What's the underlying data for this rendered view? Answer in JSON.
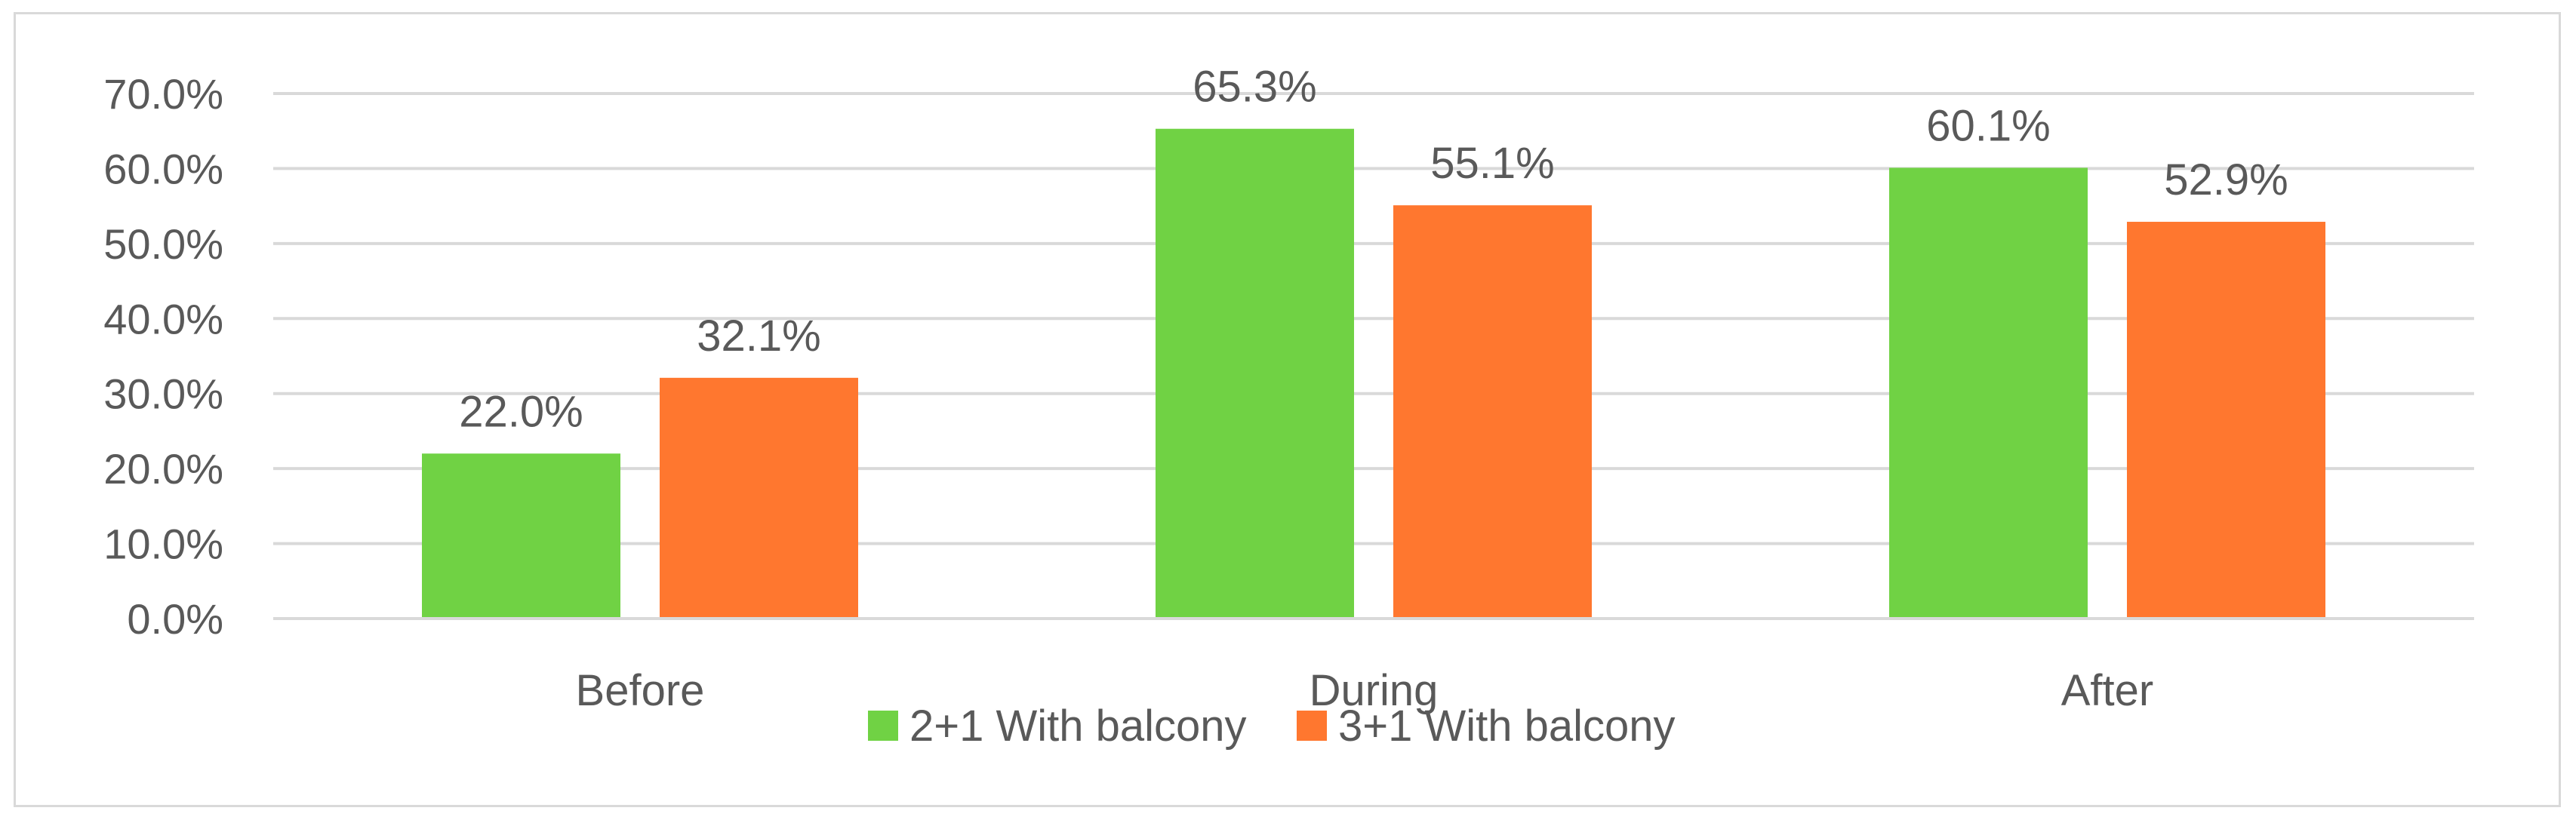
{
  "chart_data": {
    "type": "bar",
    "title": "",
    "xlabel": "",
    "ylabel": "",
    "categories": [
      "Before",
      "During",
      "After"
    ],
    "series": [
      {
        "name": "2+1 With balcony",
        "color": "#70d244",
        "values": [
          22.0,
          65.3,
          60.1
        ],
        "labels": [
          "22.0%",
          "65.3%",
          "60.1%"
        ]
      },
      {
        "name": "3+1 With balcony",
        "color": "#ff772f",
        "values": [
          32.1,
          55.1,
          52.9
        ],
        "labels": [
          "32.1%",
          "55.1%",
          "52.9%"
        ]
      }
    ],
    "ylim": [
      0,
      70
    ],
    "yticks": [
      0,
      10,
      20,
      30,
      40,
      50,
      60,
      70
    ],
    "ytick_labels": [
      "0.0%",
      "10.0%",
      "20.0%",
      "30.0%",
      "40.0%",
      "50.0%",
      "60.0%",
      "70.0%"
    ],
    "grid": true,
    "gridline_color": "#d9d9d9",
    "legend": "bottom"
  }
}
